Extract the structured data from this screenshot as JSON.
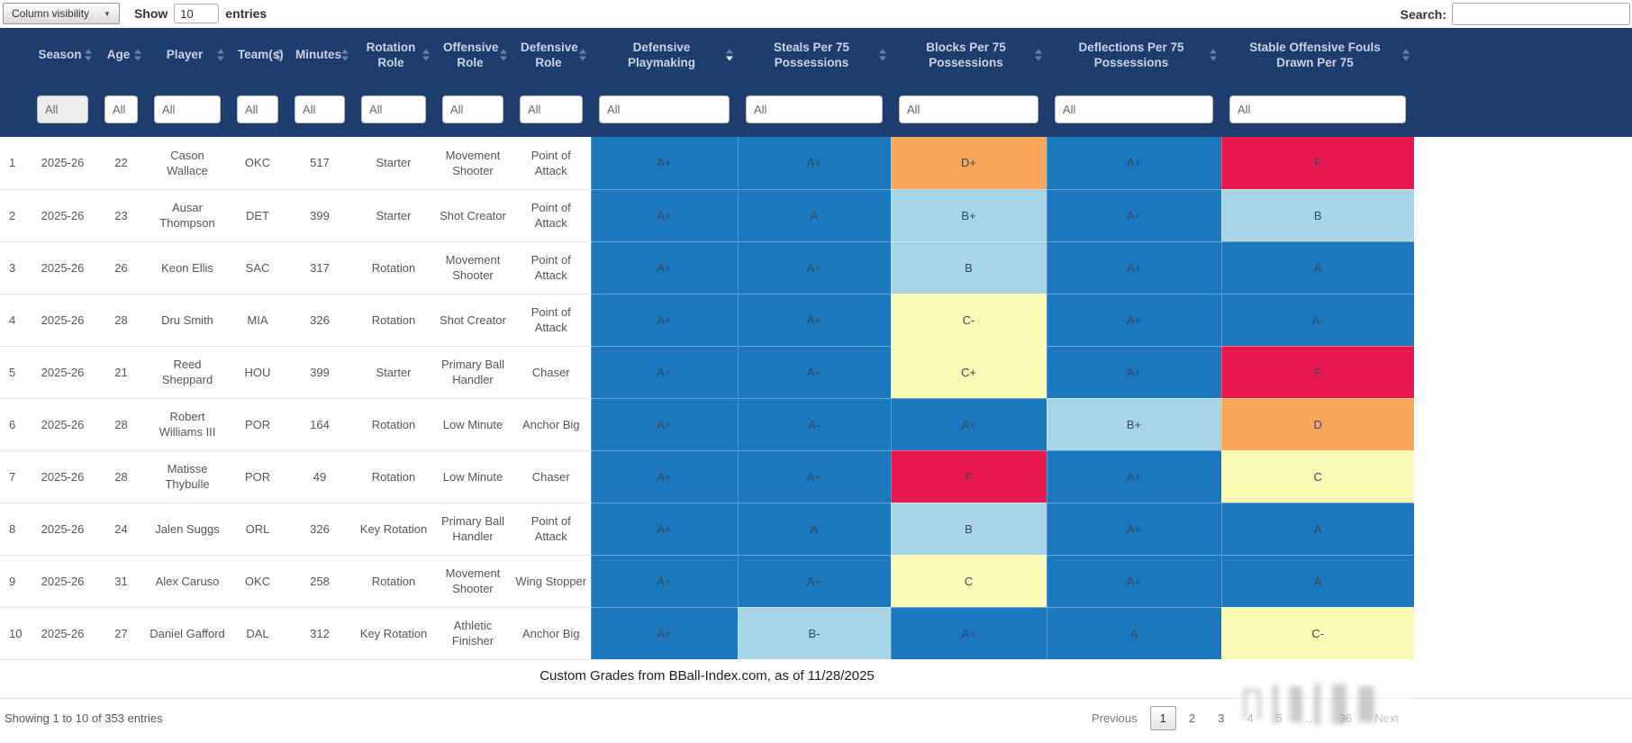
{
  "topbar": {
    "column_visibility_label": "Column visibility",
    "show_label": "Show",
    "entries_value": "10",
    "entries_label": "entries",
    "search_label": "Search:"
  },
  "table": {
    "filter_value": "All",
    "columns": [
      {
        "label": "",
        "sortable": false,
        "filter": false
      },
      {
        "label": "Season"
      },
      {
        "label": "Age"
      },
      {
        "label": "Player"
      },
      {
        "label": "Team(s)"
      },
      {
        "label": "Minutes"
      },
      {
        "label": "Rotation Role"
      },
      {
        "label": "Offensive Role"
      },
      {
        "label": "Defensive Role"
      },
      {
        "label": "Defensive Playmaking",
        "sorted": "desc"
      },
      {
        "label": "Steals Per 75 Possessions"
      },
      {
        "label": "Blocks Per 75 Possessions"
      },
      {
        "label": "Deflections Per 75 Possessions"
      },
      {
        "label": "Stable Offensive Fouls Drawn Per 75"
      }
    ],
    "grade_columns": [
      "defensive-playmaking",
      "steals-per-75",
      "blocks-per-75",
      "deflections-per-75",
      "stable-offensive-fouls-per-75"
    ],
    "rows": [
      {
        "num": "1",
        "season": "2025-26",
        "age": "22",
        "player": "Cason Wallace",
        "team": "OKC",
        "minutes": "517",
        "rotation_role": "Starter",
        "offensive_role": "Movement Shooter",
        "defensive_role": "Point of Attack",
        "grades": [
          "A+",
          "A+",
          "D+",
          "A+",
          "F"
        ]
      },
      {
        "num": "2",
        "season": "2025-26",
        "age": "23",
        "player": "Ausar Thompson",
        "team": "DET",
        "minutes": "399",
        "rotation_role": "Starter",
        "offensive_role": "Shot Creator",
        "defensive_role": "Point of Attack",
        "grades": [
          "A+",
          "A",
          "B+",
          "A+",
          "B"
        ]
      },
      {
        "num": "3",
        "season": "2025-26",
        "age": "26",
        "player": "Keon Ellis",
        "team": "SAC",
        "minutes": "317",
        "rotation_role": "Rotation",
        "offensive_role": "Movement Shooter",
        "defensive_role": "Point of Attack",
        "grades": [
          "A+",
          "A+",
          "B",
          "A+",
          "A"
        ]
      },
      {
        "num": "4",
        "season": "2025-26",
        "age": "28",
        "player": "Dru Smith",
        "team": "MIA",
        "minutes": "326",
        "rotation_role": "Rotation",
        "offensive_role": "Shot Creator",
        "defensive_role": "Point of Attack",
        "grades": [
          "A+",
          "A+",
          "C-",
          "A+",
          "A-"
        ]
      },
      {
        "num": "5",
        "season": "2025-26",
        "age": "21",
        "player": "Reed Sheppard",
        "team": "HOU",
        "minutes": "399",
        "rotation_role": "Starter",
        "offensive_role": "Primary Ball Handler",
        "defensive_role": "Chaser",
        "grades": [
          "A+",
          "A+",
          "C+",
          "A+",
          "F"
        ]
      },
      {
        "num": "6",
        "season": "2025-26",
        "age": "28",
        "player": "Robert Williams III",
        "team": "POR",
        "minutes": "164",
        "rotation_role": "Rotation",
        "offensive_role": "Low Minute",
        "defensive_role": "Anchor Big",
        "grades": [
          "A+",
          "A-",
          "A+",
          "B+",
          "D"
        ]
      },
      {
        "num": "7",
        "season": "2025-26",
        "age": "28",
        "player": "Matisse Thybulle",
        "team": "POR",
        "minutes": "49",
        "rotation_role": "Rotation",
        "offensive_role": "Low Minute",
        "defensive_role": "Chaser",
        "grades": [
          "A+",
          "A+",
          "F",
          "A+",
          "C"
        ]
      },
      {
        "num": "8",
        "season": "2025-26",
        "age": "24",
        "player": "Jalen Suggs",
        "team": "ORL",
        "minutes": "326",
        "rotation_role": "Key Rotation",
        "offensive_role": "Primary Ball Handler",
        "defensive_role": "Point of Attack",
        "grades": [
          "A+",
          "A",
          "B",
          "A+",
          "A"
        ]
      },
      {
        "num": "9",
        "season": "2025-26",
        "age": "31",
        "player": "Alex Caruso",
        "team": "OKC",
        "minutes": "258",
        "rotation_role": "Rotation",
        "offensive_role": "Movement Shooter",
        "defensive_role": "Wing Stopper",
        "grades": [
          "A+",
          "A+",
          "C",
          "A+",
          "A"
        ]
      },
      {
        "num": "10",
        "season": "2025-26",
        "age": "27",
        "player": "Daniel Gafford",
        "team": "DAL",
        "minutes": "312",
        "rotation_role": "Key Rotation",
        "offensive_role": "Athletic Finisher",
        "defensive_role": "Anchor Big",
        "grades": [
          "A+",
          "B-",
          "A+",
          "A",
          "C-"
        ]
      }
    ]
  },
  "caption": "Custom Grades from BBall-Index.com, as of 11/28/2025",
  "footer": {
    "showing_text": "Showing 1 to 10 of 353 entries",
    "pagination": {
      "previous_label": "Previous",
      "pages": [
        "1",
        "2",
        "3",
        "4",
        "5",
        "…",
        "36"
      ],
      "active_page": "1",
      "next_label": "Next"
    }
  },
  "colors": {
    "header_bg": "#1e3c6e",
    "grade_scale": {
      "A": "#1b78be",
      "B": "#a8d5e5",
      "C": "#fafab4",
      "D": "#f7a65a",
      "F": "#e8174e"
    }
  }
}
